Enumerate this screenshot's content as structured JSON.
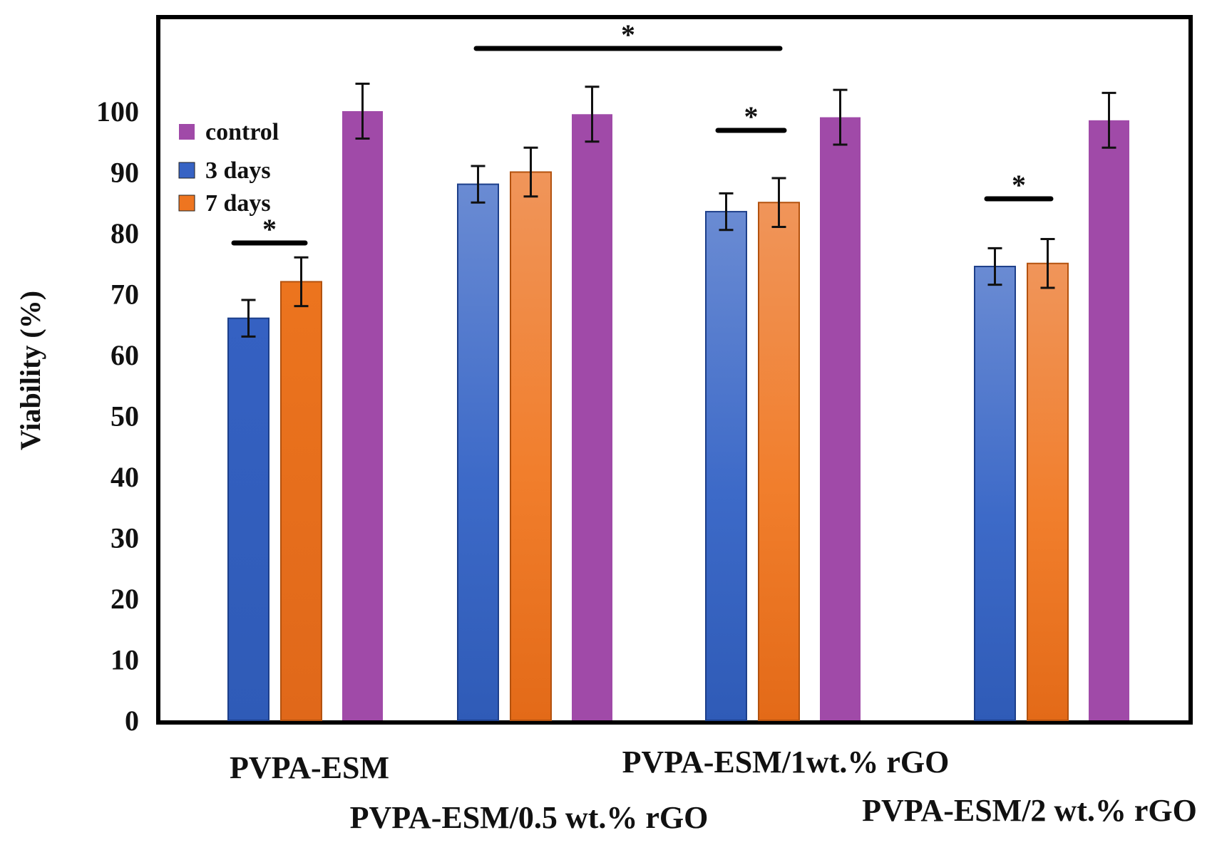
{
  "chart_data": {
    "type": "bar",
    "title": "",
    "xlabel": "",
    "ylabel": "Viability (%)",
    "ylim": [
      0,
      100
    ],
    "yticks": [
      "0",
      "10",
      "20",
      "30",
      "40",
      "50",
      "60",
      "70",
      "80",
      "90",
      "100"
    ],
    "grid": false,
    "legend_position": "top-left",
    "categories": [
      "PVPA-ESM",
      "PVPA-ESM/0.5 wt.% rGO",
      "PVPA-ESM/1wt.% rGO",
      "PVPA-ESM/2 wt.% rGO"
    ],
    "series": [
      {
        "name": "3 days",
        "color": "#3763c4",
        "values": [
          66,
          88,
          83.5,
          74.5
        ],
        "errors": [
          3,
          3,
          3,
          3
        ]
      },
      {
        "name": "7 days",
        "color": "#ee7520",
        "values": [
          72,
          90,
          85,
          75
        ],
        "errors": [
          4,
          4,
          4,
          4
        ]
      },
      {
        "name": "control",
        "color": "#a04aa8",
        "values": [
          100,
          99.5,
          99,
          98.5
        ],
        "errors": [
          4.5,
          4.5,
          4.5,
          4.5
        ]
      }
    ],
    "legend_order": [
      "control",
      "3 days",
      "7 days"
    ],
    "significance": [
      {
        "label": "*",
        "between": "PVPA-ESM 3 days vs 7 days"
      },
      {
        "label": "*",
        "between": "PVPA-ESM/0.5 wt.% rGO vs PVPA-ESM/1wt.% rGO"
      },
      {
        "label": "*",
        "between": "PVPA-ESM/1wt.% rGO 3 days vs 7 days"
      },
      {
        "label": "*",
        "between": "PVPA-ESM/2 wt.% rGO 3 days vs 7 days"
      }
    ]
  }
}
